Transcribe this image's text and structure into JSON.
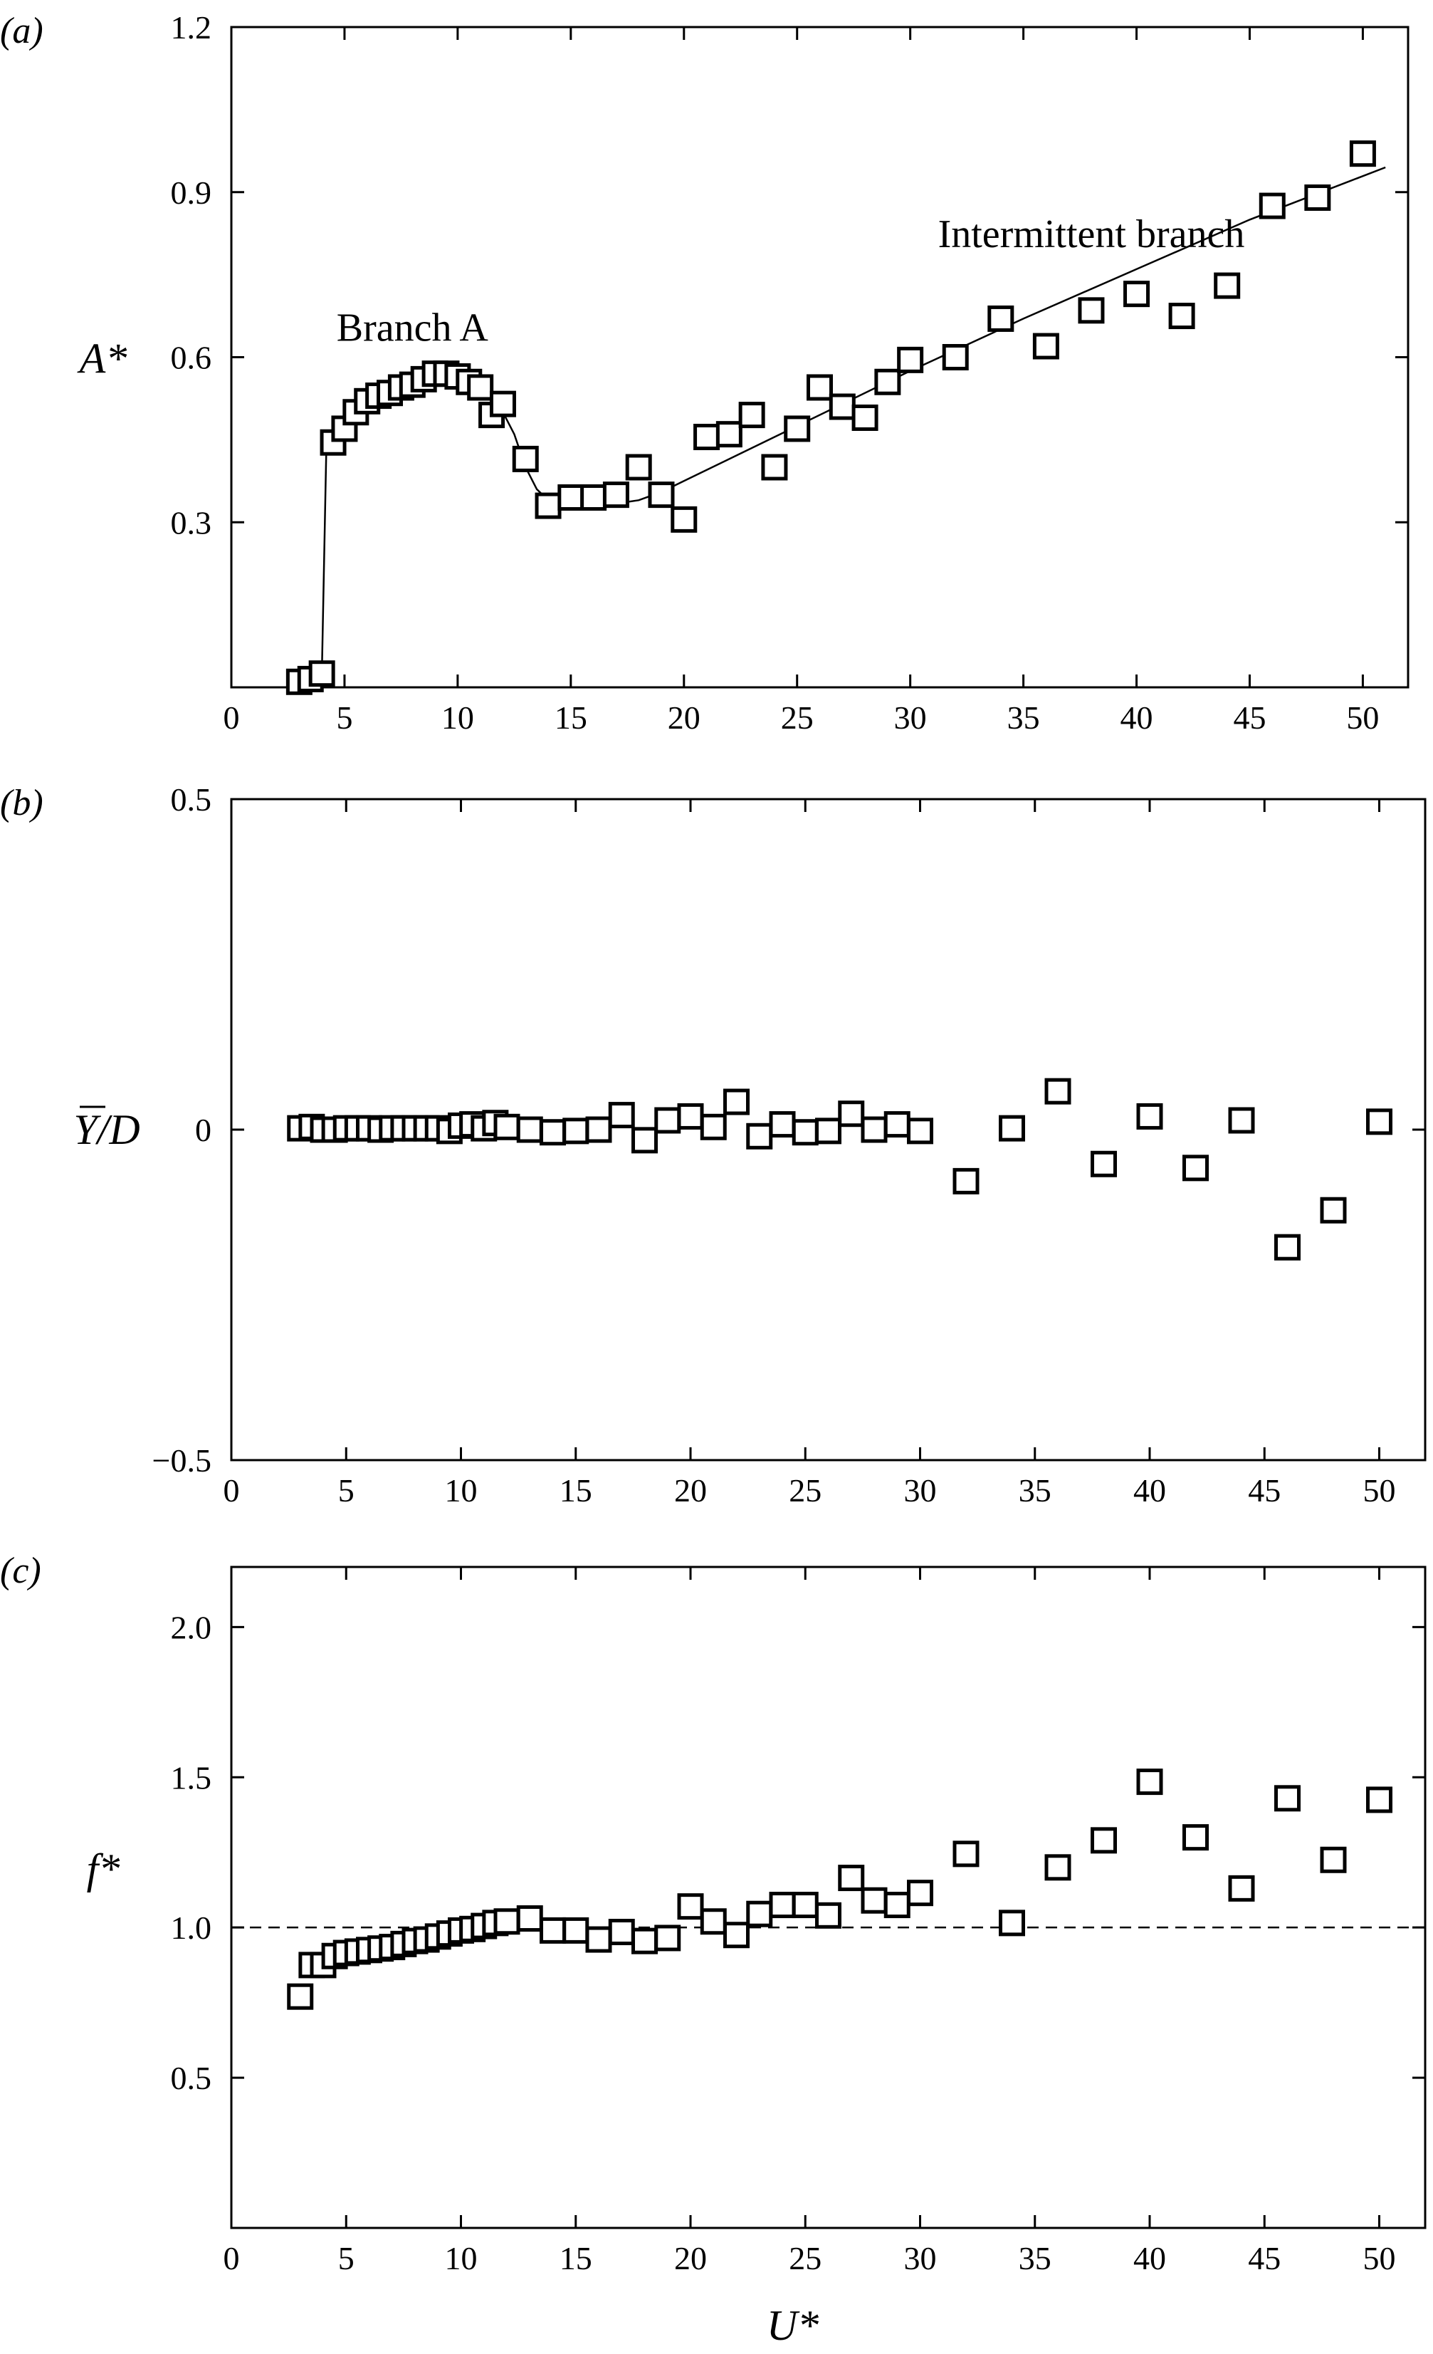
{
  "chart_data": [
    {
      "type": "scatter",
      "panel_label": "(a)",
      "ylabel": "A*",
      "xlim": [
        0,
        52
      ],
      "ylim": [
        0,
        1.2
      ],
      "x_ticks": [
        "0",
        "5",
        "10",
        "15",
        "20",
        "25",
        "30",
        "35",
        "40",
        "45",
        "50"
      ],
      "x_tick_values": [
        0,
        5,
        10,
        15,
        20,
        25,
        30,
        35,
        40,
        45,
        50
      ],
      "y_ticks": [
        "0.3",
        "0.6",
        "0.9",
        "1.2"
      ],
      "y_tick_values": [
        0.3,
        0.6,
        0.9,
        1.2
      ],
      "annotations": [
        {
          "text": "Branch A",
          "x": 8,
          "y": 0.63
        },
        {
          "text": "Intermittent branch",
          "x": 38,
          "y": 0.8
        }
      ],
      "series": [
        {
          "marker": "square",
          "x": [
            3,
            3.5,
            4,
            4.5,
            5,
            5.5,
            6,
            6.5,
            7,
            7.5,
            8,
            8.5,
            9,
            9.5,
            10,
            10.5,
            11,
            11.5,
            12,
            13,
            14,
            15,
            16,
            17,
            18,
            19,
            20,
            21,
            22,
            23,
            24,
            25,
            26,
            27,
            28,
            29,
            30,
            32,
            34,
            36,
            38,
            40,
            42,
            44,
            46,
            48,
            50
          ],
          "y": [
            0.01,
            0.015,
            0.025,
            0.445,
            0.47,
            0.5,
            0.52,
            0.53,
            0.535,
            0.545,
            0.55,
            0.56,
            0.57,
            0.57,
            0.565,
            0.555,
            0.545,
            0.495,
            0.515,
            0.415,
            0.33,
            0.345,
            0.345,
            0.35,
            0.4,
            0.35,
            0.305,
            0.455,
            0.46,
            0.495,
            0.4,
            0.47,
            0.545,
            0.51,
            0.49,
            0.555,
            0.595,
            0.6,
            0.67,
            0.62,
            0.685,
            0.715,
            0.675,
            0.73,
            0.875,
            0.89,
            0.97
          ]
        }
      ],
      "fit_line": {
        "x": [
          3,
          4,
          4.2,
          4.5,
          5,
          6,
          7,
          8,
          9,
          10,
          11,
          11.5,
          12,
          12.5,
          13,
          13.5,
          14,
          15,
          16,
          17,
          18,
          19,
          20,
          25,
          30,
          35,
          40,
          45,
          51
        ],
        "y": [
          0.01,
          0.03,
          0.44,
          0.45,
          0.49,
          0.525,
          0.545,
          0.56,
          0.565,
          0.565,
          0.55,
          0.53,
          0.5,
          0.46,
          0.4,
          0.36,
          0.34,
          0.335,
          0.333,
          0.334,
          0.34,
          0.355,
          0.375,
          0.475,
          0.575,
          0.67,
          0.76,
          0.85,
          0.945
        ]
      }
    },
    {
      "type": "scatter",
      "panel_label": "(b)",
      "ylabel": "Y/D",
      "ylabel_overline": "Y",
      "xlim": [
        0,
        52
      ],
      "ylim": [
        -0.5,
        0.5
      ],
      "x_ticks": [
        "0",
        "5",
        "10",
        "15",
        "20",
        "25",
        "30",
        "35",
        "40",
        "45",
        "50"
      ],
      "x_tick_values": [
        0,
        5,
        10,
        15,
        20,
        25,
        30,
        35,
        40,
        45,
        50
      ],
      "y_ticks": [
        "−0.5",
        "0",
        "0.5"
      ],
      "y_tick_values": [
        -0.5,
        0,
        0.5
      ],
      "series": [
        {
          "marker": "square",
          "x": [
            3,
            3.5,
            4,
            4.5,
            5,
            5.5,
            6,
            6.5,
            7,
            7.5,
            8,
            8.5,
            9,
            9.5,
            10,
            10.5,
            11,
            11.5,
            12,
            13,
            14,
            15,
            16,
            17,
            18,
            19,
            20,
            21,
            22,
            23,
            24,
            25,
            26,
            27,
            28,
            29,
            30,
            32,
            34,
            36,
            38,
            40,
            42,
            44,
            46,
            48,
            50
          ],
          "y": [
            0.002,
            0.004,
            0.0,
            0.0,
            0.002,
            0.002,
            0.002,
            0.0,
            0.002,
            0.002,
            0.002,
            0.002,
            0.002,
            -0.002,
            0.006,
            0.008,
            0.002,
            0.01,
            0.004,
            0.0,
            -0.004,
            -0.002,
            0.0,
            0.022,
            -0.016,
            0.014,
            0.02,
            0.004,
            0.042,
            -0.01,
            0.008,
            -0.004,
            -0.002,
            0.024,
            0.0,
            0.008,
            -0.002,
            -0.078,
            0.002,
            0.058,
            -0.052,
            0.02,
            -0.058,
            0.014,
            -0.178,
            -0.122,
            0.012
          ]
        }
      ]
    },
    {
      "type": "scatter",
      "panel_label": "(c)",
      "ylabel": "f*",
      "xlabel": "U*",
      "xlim": [
        0,
        52
      ],
      "ylim": [
        0,
        2.2
      ],
      "x_ticks": [
        "0",
        "5",
        "10",
        "15",
        "20",
        "25",
        "30",
        "35",
        "40",
        "45",
        "50"
      ],
      "x_tick_values": [
        0,
        5,
        10,
        15,
        20,
        25,
        30,
        35,
        40,
        45,
        50
      ],
      "y_ticks": [
        "0.5",
        "1.0",
        "1.5",
        "2.0"
      ],
      "y_tick_values": [
        0.5,
        1.0,
        1.5,
        2.0
      ],
      "reference_line_y": 1.0,
      "series": [
        {
          "marker": "square",
          "x": [
            3,
            3.5,
            4,
            4.5,
            5,
            5.5,
            6,
            6.5,
            7,
            7.5,
            8,
            8.5,
            9,
            9.5,
            10,
            10.5,
            11,
            11.5,
            12,
            13,
            14,
            15,
            16,
            17,
            18,
            19,
            20,
            21,
            22,
            23,
            24,
            25,
            26,
            27,
            28,
            29,
            30,
            32,
            34,
            36,
            38,
            40,
            42,
            44,
            46,
            48,
            50
          ],
          "y": [
            0.77,
            0.875,
            0.875,
            0.905,
            0.915,
            0.92,
            0.925,
            0.93,
            0.935,
            0.945,
            0.955,
            0.96,
            0.97,
            0.98,
            0.99,
            0.995,
            1.005,
            1.015,
            1.02,
            1.03,
            0.99,
            0.99,
            0.96,
            0.985,
            0.955,
            0.965,
            1.07,
            1.02,
            0.975,
            1.045,
            1.075,
            1.075,
            1.04,
            1.165,
            1.09,
            1.075,
            1.115,
            1.245,
            1.015,
            1.2,
            1.29,
            1.485,
            1.3,
            1.13,
            1.43,
            1.225,
            1.425
          ]
        }
      ]
    }
  ]
}
